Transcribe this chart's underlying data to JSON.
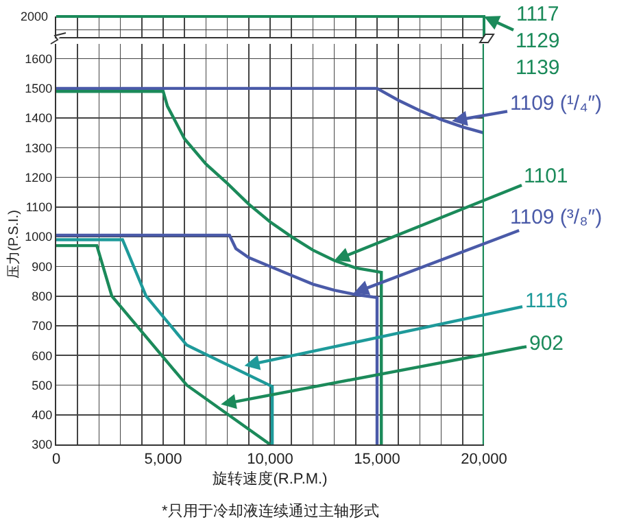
{
  "chart_data": [
    {
      "type": "other",
      "annotations": [
        "1117\n1129\n1139",
        "2000"
      ]
    },
    {
      "type": "line",
      "xlabel": "旋转速度(R.P.M.)",
      "ylabel": "压力(P.S.I.)",
      "xlim": [
        0,
        20000
      ],
      "ylim": [
        300,
        1650
      ],
      "xticks": [
        0,
        {
          "value": 1000,
          "label": null
        },
        {
          "value": 2000,
          "label": null
        },
        {
          "value": 3000,
          "label": null
        },
        {
          "value": 4000,
          "label": null
        },
        {
          "value": 5000,
          "label": "5,000"
        },
        {
          "value": 6000,
          "label": null
        },
        {
          "value": 7000,
          "label": null
        },
        {
          "value": 8000,
          "label": null
        },
        {
          "value": 9000,
          "label": null
        },
        {
          "value": 10000,
          "label": "10,000"
        },
        {
          "value": 11000,
          "label": null
        },
        {
          "value": 12000,
          "label": null
        },
        {
          "value": 13000,
          "label": null
        },
        {
          "value": 14000,
          "label": null
        },
        {
          "value": 15000,
          "label": "15,000"
        },
        {
          "value": 16000,
          "label": null
        },
        {
          "value": 17000,
          "label": null
        },
        {
          "value": 18000,
          "label": null
        },
        {
          "value": 19000,
          "label": null
        },
        {
          "value": 20000,
          "label": "20,000"
        }
      ],
      "yticks": [
        300,
        400,
        500,
        600,
        700,
        800,
        900,
        1000,
        1100,
        1200,
        1300,
        1400,
        1500,
        1600
      ],
      "grid": true,
      "series": [
        {
          "color": "#4a5aa8",
          "x": [
            0,
            15000,
            16000,
            17000,
            18000,
            19000,
            20000
          ],
          "values": [
            1500,
            1500,
            1460,
            1425,
            1395,
            1370,
            1350
          ]
        },
        {
          "color": "#1b8a5a",
          "x": [
            0,
            5000,
            5200,
            6000,
            7000,
            8000,
            9000,
            10000,
            11000,
            12000,
            13000,
            14000,
            15200,
            15200
          ],
          "values": [
            1490,
            1490,
            1440,
            1330,
            1245,
            1180,
            1110,
            1050,
            1000,
            955,
            920,
            895,
            880,
            300
          ]
        },
        {
          "color": "#4a5aa8",
          "x": [
            0,
            8100,
            8400,
            9000,
            10000,
            11000,
            12000,
            13000,
            14000,
            15000,
            15000
          ],
          "values": [
            1005,
            1005,
            960,
            930,
            900,
            870,
            840,
            820,
            805,
            795,
            300
          ]
        },
        {
          "color": "#1e9a9a",
          "x": [
            0,
            3100,
            4200,
            6100,
            10100,
            10100
          ],
          "values": [
            990,
            990,
            800,
            635,
            495,
            300
          ]
        },
        {
          "color": "#1b8a5a",
          "x": [
            0,
            1900,
            2600,
            6100,
            10000
          ],
          "values": [
            970,
            970,
            800,
            500,
            300
          ]
        }
      ],
      "ref_lines": [
        {
          "axis": "x",
          "value": 20000,
          "color": "#1b8a5a"
        }
      ],
      "annotations": [
        {
          "text": "1109 (¹/₄″)",
          "x": 18500,
          "y": 1390
        },
        {
          "text": "1101",
          "x": 13000,
          "y": 920
        },
        {
          "text": "1109 (³/₈″)",
          "x": 13900,
          "y": 810
        },
        {
          "text": "1116",
          "x": 8800,
          "y": 565
        },
        {
          "text": "902",
          "x": 7700,
          "y": 435
        },
        "*只用于冷却液连续通过主轴形式"
      ]
    }
  ]
}
